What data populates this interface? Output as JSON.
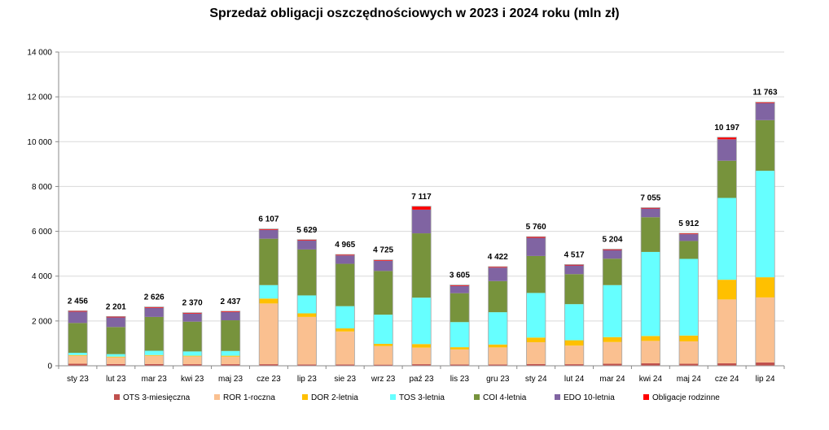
{
  "chart_data": {
    "type": "bar",
    "stacked": true,
    "title": "Sprzedaż obligacji oszczędnościowych w 2023 i 2024 roku (mln zł)",
    "xlabel": "",
    "ylabel": "",
    "ylim": [
      0,
      14000
    ],
    "yticks": [
      "0",
      "2 000",
      "4 000",
      "6 000",
      "8 000",
      "10 000",
      "12 000",
      "14 000"
    ],
    "grid": true,
    "legend_position": "bottom",
    "categories": [
      "sty 23",
      "lut 23",
      "mar 23",
      "kwi 23",
      "maj 23",
      "cze 23",
      "lip 23",
      "sie 23",
      "wrz 23",
      "paź 23",
      "lis 23",
      "gru 23",
      "sty 24",
      "lut 24",
      "mar 24",
      "kwi 24",
      "maj 24",
      "cze 24",
      "lip 24"
    ],
    "totals": [
      "2 456",
      "2 201",
      "2 626",
      "2 370",
      "2 437",
      "6 107",
      "5 629",
      "4 965",
      "4 725",
      "7 117",
      "3 605",
      "4 422",
      "5 760",
      "4 517",
      "5 204",
      "7 055",
      "5 912",
      "10 197",
      "11 763"
    ],
    "series": [
      {
        "name": "OTS 3-miesięczna",
        "color": "#c0504d",
        "values": [
          90,
          80,
          80,
          70,
          70,
          70,
          60,
          60,
          50,
          70,
          60,
          60,
          80,
          70,
          90,
          110,
          90,
          110,
          150
        ]
      },
      {
        "name": "ROR 1-roczna",
        "color": "#fac090",
        "values": [
          360,
          300,
          370,
          350,
          340,
          2710,
          2120,
          1470,
          830,
          740,
          670,
          760,
          970,
          830,
          970,
          1000,
          1000,
          2850,
          2900
        ]
      },
      {
        "name": "DOR 2-letnia",
        "color": "#ffc000",
        "values": [
          30,
          30,
          30,
          30,
          40,
          220,
          160,
          140,
          100,
          160,
          100,
          130,
          210,
          240,
          220,
          220,
          260,
          880,
          900
        ]
      },
      {
        "name": "TOS 3-letnia",
        "color": "#66ffff",
        "values": [
          100,
          110,
          190,
          190,
          210,
          600,
          800,
          990,
          1300,
          2070,
          1120,
          1440,
          1990,
          1610,
          2320,
          3750,
          3420,
          3650,
          4750
        ]
      },
      {
        "name": "COI 4-letnia",
        "color": "#77933c",
        "values": [
          1330,
          1210,
          1510,
          1330,
          1370,
          2070,
          2050,
          1890,
          1950,
          2870,
          1290,
          1390,
          1650,
          1340,
          1180,
          1550,
          800,
          1660,
          2260
        ]
      },
      {
        "name": "EDO 10-letnia",
        "color": "#8064a2",
        "values": [
          506,
          431,
          406,
          360,
          367,
          397,
          399,
          375,
          455,
          1057,
          325,
          602,
          810,
          387,
          384,
          385,
          302,
          957,
          763
        ]
      },
      {
        "name": "Obligacje rodzinne",
        "color": "#ff0000",
        "values": [
          40,
          40,
          40,
          40,
          40,
          40,
          40,
          40,
          40,
          150,
          40,
          40,
          50,
          40,
          40,
          40,
          40,
          90,
          40
        ]
      }
    ]
  }
}
